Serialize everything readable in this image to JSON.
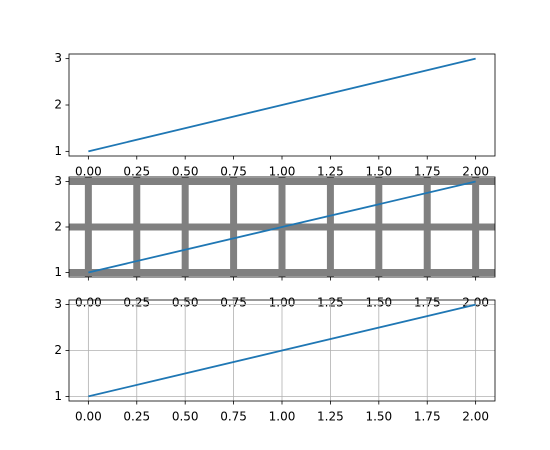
{
  "chart_data": [
    {
      "type": "line",
      "x": [
        0,
        1,
        2
      ],
      "values": [
        1,
        2,
        3
      ],
      "color": "#1f77b4",
      "xlim": [
        -0.1,
        2.1
      ],
      "ylim": [
        0.9,
        3.1
      ],
      "xticks": [
        {
          "value": 0,
          "label": "0.00"
        },
        {
          "value": 0.25,
          "label": "0.25"
        },
        {
          "value": 0.5,
          "label": "0.50"
        },
        {
          "value": 0.75,
          "label": "0.75"
        },
        {
          "value": 1,
          "label": "1.00"
        },
        {
          "value": 1.25,
          "label": "1.25"
        },
        {
          "value": 1.5,
          "label": "1.50"
        },
        {
          "value": 1.75,
          "label": "1.75"
        },
        {
          "value": 2,
          "label": "2.00"
        }
      ],
      "yticks": [
        1,
        2,
        3
      ],
      "grid": false
    },
    {
      "type": "line",
      "x": [
        0,
        1,
        2
      ],
      "values": [
        1,
        2,
        3
      ],
      "color": "#1f77b4",
      "xlim": [
        -0.1,
        2.1
      ],
      "ylim": [
        0.9,
        3.1
      ],
      "xticks": [
        {
          "value": 0,
          "label": "0.00"
        },
        {
          "value": 0.25,
          "label": "0.25"
        },
        {
          "value": 0.5,
          "label": "0.50"
        },
        {
          "value": 0.75,
          "label": "0.75"
        },
        {
          "value": 1,
          "label": "1.00"
        },
        {
          "value": 1.25,
          "label": "1.25"
        },
        {
          "value": 1.5,
          "label": "1.50"
        },
        {
          "value": 1.75,
          "label": "1.75"
        },
        {
          "value": 2,
          "label": "2.00"
        }
      ],
      "yticks": [
        1,
        2,
        3
      ],
      "grid": true
    },
    {
      "type": "line",
      "x": [
        0,
        1,
        2
      ],
      "values": [
        1,
        2,
        3
      ],
      "color": "#1f77b4",
      "xlim": [
        -0.1,
        2.1
      ],
      "ylim": [
        0.9,
        3.1
      ],
      "xticks": [
        {
          "value": 0,
          "label": "0.00"
        },
        {
          "value": 0.25,
          "label": "0.25"
        },
        {
          "value": 0.5,
          "label": "0.50"
        },
        {
          "value": 0.75,
          "label": "0.75"
        },
        {
          "value": 1,
          "label": "1.00"
        },
        {
          "value": 1.25,
          "label": "1.25"
        },
        {
          "value": 1.5,
          "label": "1.50"
        },
        {
          "value": 1.75,
          "label": "1.75"
        },
        {
          "value": 2,
          "label": "2.00"
        }
      ],
      "yticks": [
        1,
        2,
        3
      ],
      "grid": true
    }
  ]
}
